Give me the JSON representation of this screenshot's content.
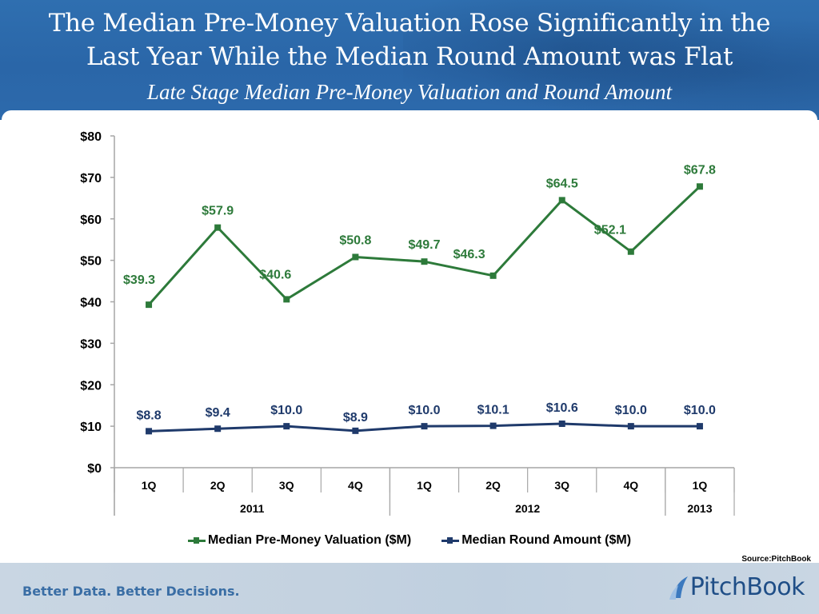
{
  "header": {
    "title_line1": "The Median Pre-Money Valuation Rose Significantly in the",
    "title_line2": "Last Year While the Median Round Amount was Flat",
    "subtitle": "Late Stage Median Pre-Money Valuation and Round Amount"
  },
  "footer": {
    "tagline": "Better Data. Better Decisions.",
    "logo_text": "PitchBook",
    "logo_icon": "pitchbook-swoosh-icon",
    "source": "Source:PitchBook"
  },
  "colors": {
    "valuation": "#2d7a3a",
    "round": "#1f3a6b",
    "header": "#2d6aac"
  },
  "chart_data": {
    "type": "line",
    "title": "Late Stage Median Pre-Money Valuation and Round Amount",
    "xlabel": "",
    "ylabel": "",
    "ylim": [
      0,
      80
    ],
    "yticks": [
      0,
      10,
      20,
      30,
      40,
      50,
      60,
      70,
      80
    ],
    "ytick_labels": [
      "$0",
      "$10",
      "$20",
      "$30",
      "$40",
      "$50",
      "$60",
      "$70",
      "$80"
    ],
    "categories": [
      "1Q",
      "2Q",
      "3Q",
      "4Q",
      "1Q",
      "2Q",
      "3Q",
      "4Q",
      "1Q"
    ],
    "year_groups": [
      {
        "label": "2011",
        "count": 4
      },
      {
        "label": "2012",
        "count": 4
      },
      {
        "label": "2013",
        "count": 1
      }
    ],
    "grid": false,
    "legend_position": "bottom",
    "series": [
      {
        "name": "Median Pre-Money Valuation ($M)",
        "color": "#2d7a3a",
        "values": [
          39.3,
          57.9,
          40.6,
          50.8,
          49.7,
          46.3,
          64.5,
          52.1,
          67.8
        ],
        "labels": [
          "$39.3",
          "$57.9",
          "$40.6",
          "$50.8",
          "$49.7",
          "$46.3",
          "$64.5",
          "$52.1",
          "$67.8"
        ]
      },
      {
        "name": "Median Round Amount ($M)",
        "color": "#1f3a6b",
        "values": [
          8.8,
          9.4,
          10.0,
          8.9,
          10.0,
          10.1,
          10.6,
          10.0,
          10.0
        ],
        "labels": [
          "$8.8",
          "$9.4",
          "$10.0",
          "$8.9",
          "$10.0",
          "$10.1",
          "$10.6",
          "$10.0",
          "$10.0"
        ]
      }
    ]
  }
}
